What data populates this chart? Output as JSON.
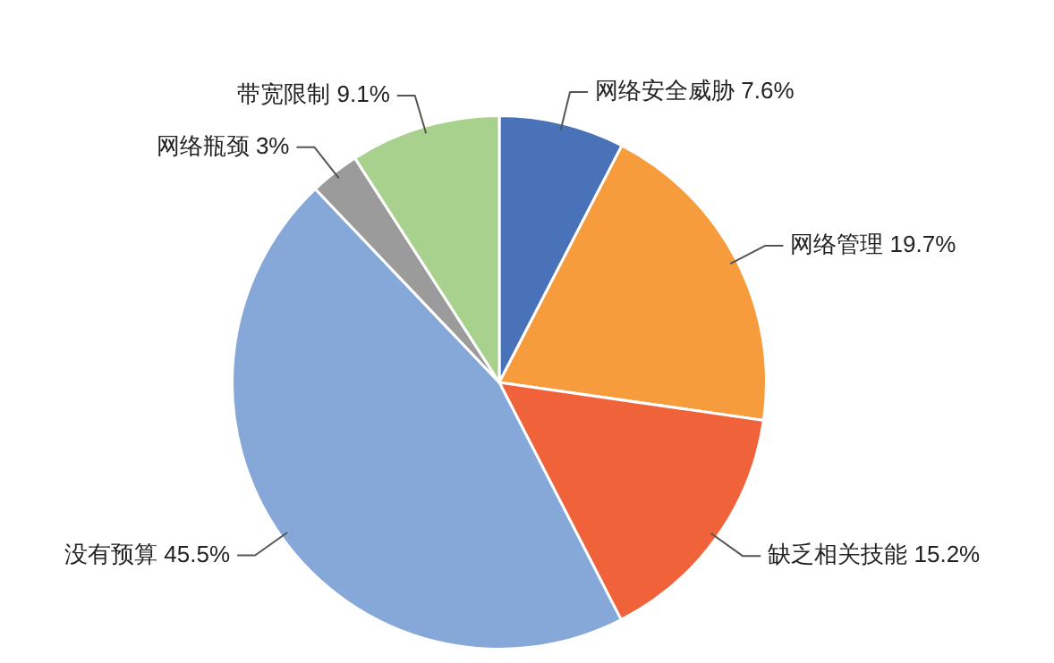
{
  "chart_data": {
    "type": "pie",
    "categories": [
      "网络安全威胁",
      "网络管理",
      "缺乏相关技能",
      "没有预算",
      "网络瓶颈",
      "带宽限制"
    ],
    "values": [
      7.6,
      19.7,
      15.2,
      45.5,
      3,
      9.1
    ],
    "value_labels": [
      "7.6%",
      "19.7%",
      "15.2%",
      "45.5%",
      "3%",
      "9.1%"
    ],
    "colors": [
      "#4a72b8",
      "#f79c3d",
      "#f0633a",
      "#86a8d8",
      "#9b9b9b",
      "#a9d18e"
    ],
    "legend": false
  }
}
